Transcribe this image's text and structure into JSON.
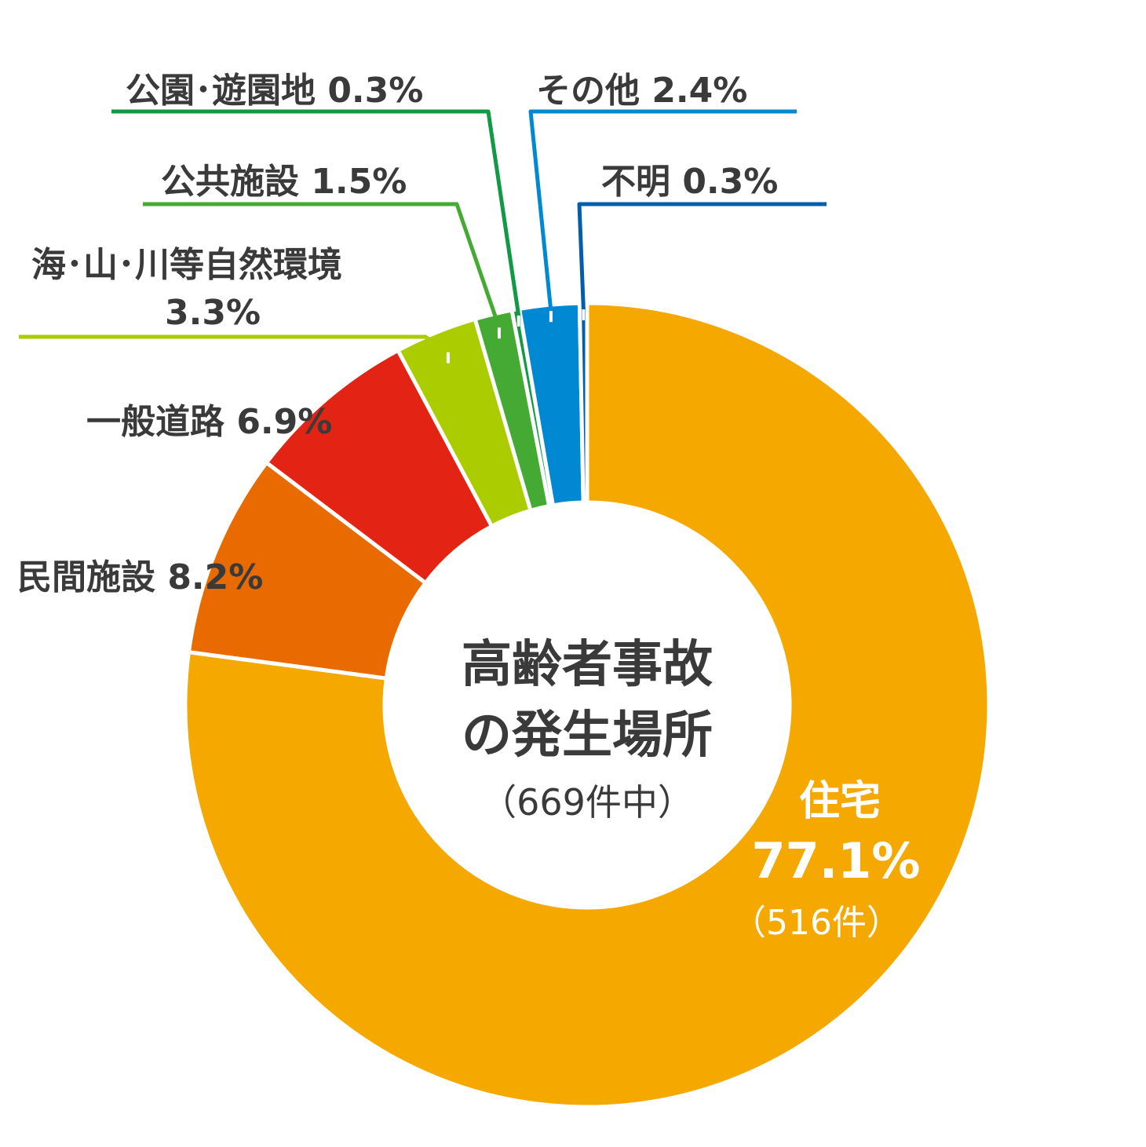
{
  "chart_data": {
    "type": "pie",
    "style": "donut",
    "title_lines": [
      "高齢者事故",
      "の発生場所"
    ],
    "subtitle": "（669件中）",
    "series": [
      {
        "name": "住宅",
        "value": 77.1,
        "value_label": "77.1%",
        "count_label": "（516件）",
        "color": "#F5A800"
      },
      {
        "name": "民間施設",
        "value": 8.2,
        "value_label": "8.2%",
        "color": "#E96B00"
      },
      {
        "name": "一般道路",
        "value": 6.9,
        "value_label": "6.9%",
        "color": "#E32313"
      },
      {
        "name": "海・山・川等自然環境",
        "value": 3.3,
        "value_label": "3.3%",
        "color": "#AACC00"
      },
      {
        "name": "公共施設",
        "value": 1.5,
        "value_label": "1.5%",
        "color": "#44AA33"
      },
      {
        "name": "公園・遊園地",
        "value": 0.3,
        "value_label": "0.3%",
        "color": "#119944"
      },
      {
        "name": "その他",
        "value": 2.4,
        "value_label": "2.4%",
        "color": "#0088D2"
      },
      {
        "name": "不明",
        "value": 0.3,
        "value_label": "0.3%",
        "color": "#005EAA"
      }
    ],
    "labels_text": {
      "park": "公園･遊園地 0.3%",
      "other": "その他 2.4%",
      "public": "公共施設 1.5%",
      "unknown": "不明 0.3%",
      "nature_line1": "海･山･川等自然環境",
      "nature_line2": "3.3%",
      "road": "一般道路 6.9%",
      "private": "民間施設 8.2%",
      "house_name": "住宅",
      "house_pct": "77.1%",
      "house_count": "（516件）"
    }
  }
}
